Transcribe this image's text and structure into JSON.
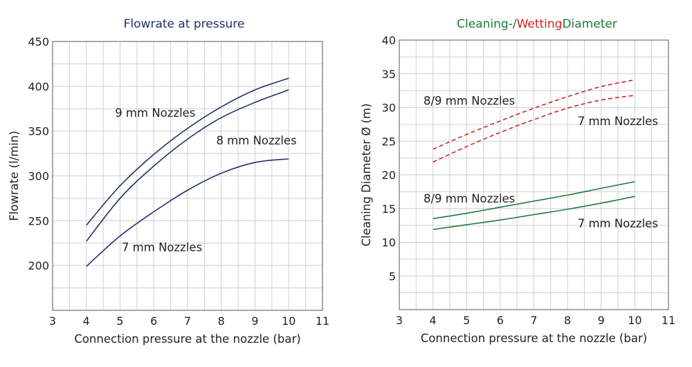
{
  "chart_data": [
    {
      "type": "line",
      "title": "Flowrate at pressure",
      "title_color": "#1f2f6e",
      "xlabel": "Connection pressure at the nozzle (bar)",
      "ylabel": "Flowrate (l/min)",
      "xlim": [
        3,
        11
      ],
      "ylim": [
        150,
        450
      ],
      "xticks": [
        3,
        4,
        5,
        6,
        7,
        8,
        9,
        10,
        11
      ],
      "yticks": [
        200,
        250,
        300,
        350,
        400,
        450
      ],
      "grid": true,
      "series": [
        {
          "name": "9 mm Nozzles",
          "color": "#1f2f6e",
          "dashed": false,
          "x": [
            4,
            5,
            6,
            7,
            8,
            9,
            10
          ],
          "y": [
            245,
            289,
            324,
            353,
            377,
            396,
            409
          ]
        },
        {
          "name": "8 mm Nozzles",
          "color": "#1f2f6e",
          "dashed": false,
          "x": [
            4,
            5,
            6,
            7,
            8,
            9,
            10
          ],
          "y": [
            227,
            275,
            311,
            341,
            365,
            382,
            396
          ]
        },
        {
          "name": "7 mm Nozzles",
          "color": "#1f2f6e",
          "dashed": false,
          "x": [
            4,
            5,
            6,
            7,
            8,
            9,
            10
          ],
          "y": [
            199,
            233,
            260,
            284,
            303,
            315,
            319
          ]
        }
      ],
      "annotations": [
        {
          "text": "9 mm Nozzles",
          "x": 4.85,
          "y": 366
        },
        {
          "text": "8 mm Nozzles",
          "x": 7.85,
          "y": 335
        },
        {
          "text": "7 mm Nozzles",
          "x": 5.05,
          "y": 216
        }
      ]
    },
    {
      "type": "line",
      "title_parts": [
        {
          "text": "Cleaning-/",
          "color": "#1a7a3a"
        },
        {
          "text": "Wetting",
          "color": "#d42020"
        },
        {
          "text": "Diameter",
          "color": "#1a7a3a"
        }
      ],
      "xlabel": "Connection pressure at the nozzle (bar)",
      "ylabel": "Cleaning Diameter Ø (m)",
      "xlim": [
        3,
        11
      ],
      "ylim": [
        0,
        40
      ],
      "xticks": [
        3,
        4,
        5,
        6,
        7,
        8,
        9,
        10,
        11
      ],
      "yticks": [
        5,
        10,
        15,
        20,
        25,
        30,
        35,
        40
      ],
      "grid": true,
      "series": [
        {
          "name": "8/9 mm Nozzles (wetting)",
          "color": "#d42020",
          "dashed": true,
          "x": [
            4,
            5,
            6,
            7,
            8,
            9,
            10
          ],
          "y": [
            23.8,
            26.0,
            28.0,
            29.9,
            31.6,
            33.1,
            34.1
          ]
        },
        {
          "name": "7 mm Nozzles (wetting)",
          "color": "#d42020",
          "dashed": true,
          "x": [
            4,
            5,
            6,
            7,
            8,
            9,
            10
          ],
          "y": [
            21.9,
            24.2,
            26.3,
            28.2,
            29.9,
            31.1,
            31.8
          ]
        },
        {
          "name": "8/9 mm Nozzles (cleaning)",
          "color": "#1a7a3a",
          "dashed": false,
          "x": [
            4,
            5,
            6,
            7,
            8,
            9,
            10
          ],
          "y": [
            13.5,
            14.3,
            15.2,
            16.1,
            17.0,
            18.0,
            19.0
          ]
        },
        {
          "name": "7 mm Nozzles (cleaning)",
          "color": "#1a7a3a",
          "dashed": false,
          "x": [
            4,
            5,
            6,
            7,
            8,
            9,
            10
          ],
          "y": [
            11.9,
            12.6,
            13.3,
            14.1,
            14.9,
            15.8,
            16.8
          ]
        }
      ],
      "annotations": [
        {
          "text": "8/9 mm Nozzles",
          "x": 3.72,
          "y": 30.4
        },
        {
          "text": "7 mm Nozzles",
          "x": 8.3,
          "y": 27.4
        },
        {
          "text": "8/9 mm Nozzles",
          "x": 3.72,
          "y": 15.9
        },
        {
          "text": "7 mm Nozzles",
          "x": 8.3,
          "y": 12.2
        }
      ]
    }
  ]
}
